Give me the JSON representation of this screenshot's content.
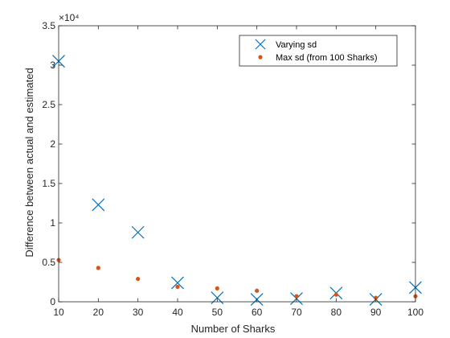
{
  "chart_data": {
    "type": "scatter",
    "title": "",
    "xlabel": "Number of Sharks",
    "ylabel": "Difference between actual and estimated",
    "xlim": [
      10,
      100
    ],
    "ylim": [
      0,
      35000
    ],
    "x_ticks": [
      10,
      20,
      30,
      40,
      50,
      60,
      70,
      80,
      90,
      100
    ],
    "x_tick_labels": [
      "10",
      "20",
      "30",
      "40",
      "50",
      "60",
      "70",
      "80",
      "90",
      "100"
    ],
    "y_ticks": [
      0,
      5000,
      10000,
      15000,
      20000,
      25000,
      30000,
      35000
    ],
    "y_tick_labels": [
      "0",
      "0.5",
      "1",
      "1.5",
      "2",
      "2.5",
      "3",
      "3.5"
    ],
    "y_exponent_label": "×10⁴",
    "grid": false,
    "legend_position": "top-right",
    "series": [
      {
        "name": "Varying sd",
        "marker": "x",
        "color": "#0072BD",
        "x": [
          10,
          20,
          30,
          40,
          50,
          60,
          70,
          80,
          90,
          100
        ],
        "y": [
          30500,
          12300,
          8800,
          2400,
          500,
          300,
          400,
          1100,
          300,
          1800
        ]
      },
      {
        "name": "Max sd (from 100 Sharks)",
        "marker": "dot",
        "color": "#D95319",
        "x": [
          10,
          20,
          30,
          40,
          50,
          60,
          70,
          80,
          90,
          100
        ],
        "y": [
          5300,
          4300,
          2900,
          1900,
          1700,
          1400,
          700,
          900,
          500,
          700
        ]
      }
    ]
  }
}
